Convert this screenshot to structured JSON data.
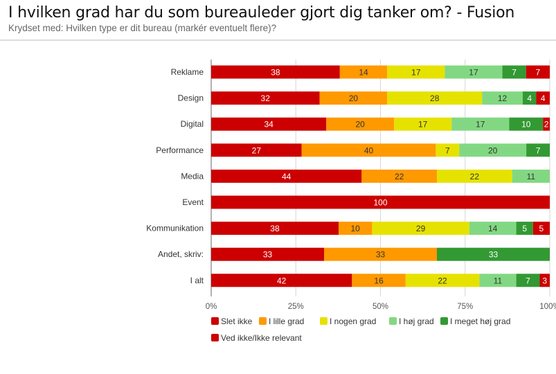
{
  "chart_data": {
    "type": "bar",
    "orientation": "horizontal",
    "stacked": "percent",
    "title": "I hvilken grad har du som bureauleder gjort dig tanker om? - Fusion",
    "subtitle": "Krydset med: Hvilken type er dit bureau (markér eventuelt flere)?",
    "xlabel": "",
    "ylabel": "",
    "xlim": [
      0,
      100
    ],
    "x_ticks": [
      "0%",
      "25%",
      "50%",
      "75%",
      "100%"
    ],
    "x_tick_values": [
      0,
      25,
      50,
      75,
      100
    ],
    "grid": true,
    "legend_position": "bottom",
    "categories": [
      "Reklame",
      "Design",
      "Digital",
      "Performance",
      "Media",
      "Event",
      "Kommunikation",
      "Andet, skriv:",
      "I alt"
    ],
    "series": [
      {
        "name": "Slet ikke",
        "color": "#cc0000",
        "label_color": "#ffffff",
        "values": [
          38,
          32,
          34,
          27,
          44,
          100,
          38,
          33,
          42
        ]
      },
      {
        "name": "I lille grad",
        "color": "#ff9900",
        "label_color": "#333333",
        "values": [
          14,
          20,
          20,
          40,
          22,
          0,
          10,
          33,
          16
        ]
      },
      {
        "name": "I nogen grad",
        "color": "#e6e200",
        "label_color": "#333333",
        "values": [
          17,
          28,
          17,
          7,
          22,
          0,
          29,
          0,
          22
        ]
      },
      {
        "name": "I høj grad",
        "color": "#82d882",
        "label_color": "#333333",
        "values": [
          17,
          12,
          17,
          20,
          11,
          0,
          14,
          0,
          11
        ]
      },
      {
        "name": "I meget høj grad",
        "color": "#339933",
        "label_color": "#ffffff",
        "values": [
          7,
          4,
          10,
          7,
          0,
          0,
          5,
          33,
          7
        ]
      },
      {
        "name": "Ved ikke/Ikke relevant",
        "color": "#cc0000",
        "label_color": "#ffffff",
        "values": [
          7,
          4,
          2,
          0,
          0,
          0,
          5,
          0,
          3
        ]
      }
    ]
  }
}
